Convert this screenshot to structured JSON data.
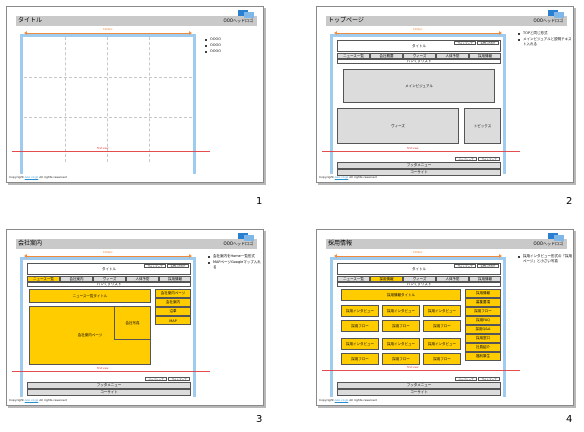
{
  "company": "OOOヘッドロゴ",
  "footer": {
    "copyright": "Copyright",
    "link": "ooo co jp",
    "rights": "All rights reserved"
  },
  "fold_label": "first view",
  "width_label": "1000px",
  "colors": {
    "accent_blue": "#9ecbee",
    "accent_orange": "#f08a3c",
    "fold_red": "#e23b3b",
    "highlight_yellow": "#ffcc00",
    "block_gray": "#dcdcdc"
  },
  "slides": [
    {
      "number": "1",
      "title": "タイトル",
      "bullets": [
        "OOOO",
        "OOOO",
        "OOOO"
      ]
    },
    {
      "number": "2",
      "title": "トップページ",
      "bullets": [
        "TOPと同じ形式",
        "メインビジュアルと説明テキスト入れる"
      ],
      "header": {
        "title": "タイトル",
        "util": [
          "サイトマップ",
          "お問い合わせ"
        ]
      },
      "nav": [
        "ニュース一覧",
        "会社概要",
        "ヴィーズ",
        "人体予防",
        "採用情報"
      ],
      "breadcrumb": "パンくずリスト",
      "main_visual": "メインビジュアル",
      "news": "ヴィーズ",
      "side": "トピックス",
      "footer_util": [
        "ページトップ",
        "サイトマップ"
      ],
      "footer_nav": "フッタメニュー",
      "footer_site": "コーサイト"
    },
    {
      "number": "3",
      "title": "会社案内",
      "bullets": [
        "会社案内をHome一覧形式",
        "MAPページGoogleマップ入れる"
      ],
      "header": {
        "title": "タイトル",
        "util": [
          "サイトマップ",
          "お問い合わせ"
        ]
      },
      "nav": [
        "ニュース一覧",
        "会社案内",
        "ヴィーズ",
        "人体予防",
        "採用情報"
      ],
      "breadcrumb": "パンくずリスト",
      "content_title": "ニュース一覧タイトル",
      "content_main": "会社案内ページ",
      "content_sub": "会社写真",
      "side_items": [
        "会社案内ページ",
        "会社案内",
        "沿革",
        "MAP"
      ],
      "footer_util": [
        "ページトップ",
        "サイトマップ"
      ],
      "footer_nav": "フッタメニュー",
      "footer_site": "コーサイト"
    },
    {
      "number": "4",
      "title": "採用情報",
      "bullets": [
        "採用インタビュー形式の「採用ページ」と小さい写真"
      ],
      "header": {
        "title": "タイトル",
        "util": [
          "サイトマップ",
          "お問い合わせ"
        ]
      },
      "nav": [
        "ニュース一覧",
        "採用情報",
        "ヴィーズ",
        "人体予防",
        "採用情報"
      ],
      "breadcrumb": "パンくずリスト",
      "content_title": "採用情報タイトル",
      "cards": [
        "採用インタビュー",
        "採用フロー",
        "採用インタビュー",
        "採用フロー",
        "採用インタビュー",
        "採用フロー",
        "採用インタビュー",
        "採用フロー",
        "採用インタビュー",
        "採用フロー",
        "採用インタビュー",
        "採用フロー"
      ],
      "side_items": [
        "採用情報",
        "募集要項",
        "採用フロー",
        "採用FAQ",
        "採用Q&A",
        "採用窓口",
        "社員紹介",
        "福利厚生"
      ],
      "footer_util": [
        "ページトップ",
        "サイトマップ"
      ],
      "footer_nav": "フッタメニュー",
      "footer_site": "コーサイト"
    }
  ]
}
